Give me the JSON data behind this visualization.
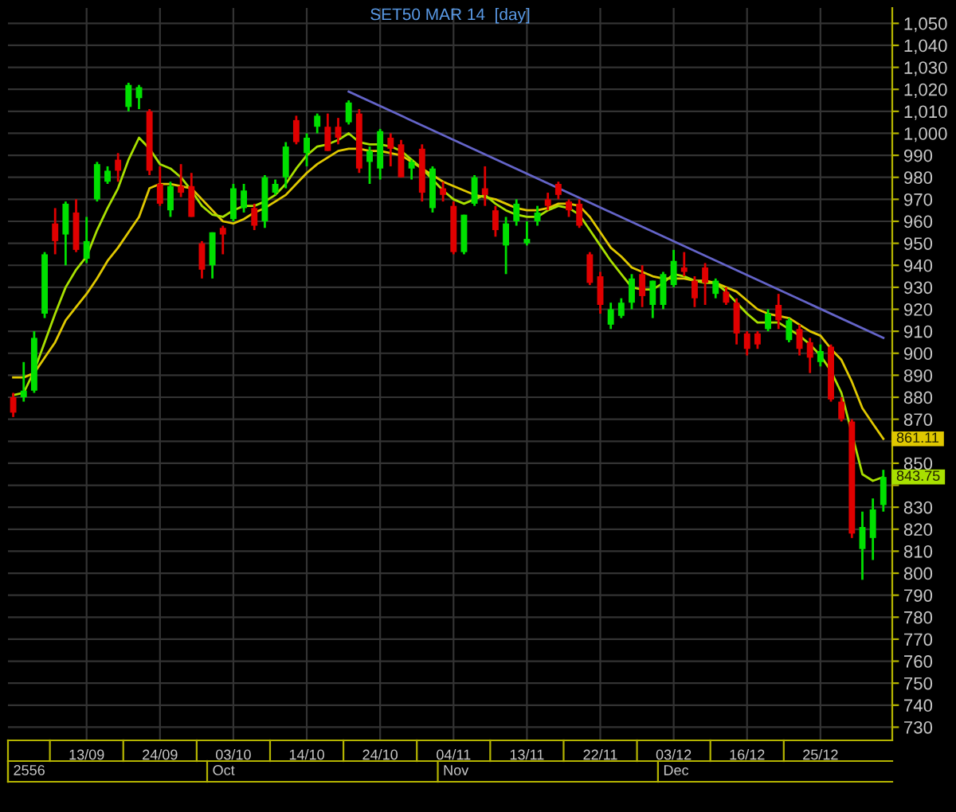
{
  "chart_data": {
    "type": "candlestick",
    "title": "SET50 MAR 14  [day]",
    "categories": [
      null,
      null,
      null,
      null,
      null,
      null,
      null,
      "13/09",
      null,
      null,
      null,
      null,
      null,
      null,
      "24/09",
      null,
      null,
      null,
      null,
      null,
      null,
      "03/10",
      null,
      null,
      null,
      null,
      null,
      null,
      "14/10",
      null,
      null,
      null,
      null,
      null,
      null,
      "24/10",
      null,
      null,
      null,
      null,
      null,
      null,
      "04/11",
      null,
      null,
      null,
      null,
      null,
      null,
      "13/11",
      null,
      null,
      null,
      null,
      null,
      null,
      "22/11",
      null,
      null,
      null,
      null,
      null,
      null,
      "03/12",
      null,
      null,
      null,
      null,
      null,
      null,
      "16/12",
      null,
      null,
      null,
      null,
      null,
      null,
      "25/12",
      null,
      null,
      null,
      null,
      null,
      null
    ],
    "ohlc": [
      [
        880,
        882,
        871,
        873
      ],
      [
        880,
        896,
        878,
        883
      ],
      [
        883,
        910,
        882,
        907
      ],
      [
        918,
        946,
        916,
        945
      ],
      [
        959,
        966,
        945,
        951
      ],
      [
        954,
        969,
        940,
        968
      ],
      [
        964,
        970,
        946,
        947
      ],
      [
        943,
        962,
        941,
        951
      ],
      [
        970,
        987,
        969,
        986
      ],
      [
        978,
        985,
        977,
        983
      ],
      [
        988,
        991,
        978,
        983
      ],
      [
        1012,
        1023,
        1010,
        1022
      ],
      [
        1016,
        1022,
        1011,
        1021
      ],
      [
        1010,
        1011,
        981,
        983
      ],
      [
        977,
        985,
        967,
        968
      ],
      [
        965,
        978,
        962,
        976
      ],
      [
        976,
        986,
        971,
        973
      ],
      [
        976,
        982,
        962,
        962
      ],
      [
        950,
        951,
        934,
        938
      ],
      [
        940,
        955,
        934,
        955
      ],
      [
        957,
        958,
        945,
        954
      ],
      [
        961,
        977,
        960,
        975
      ],
      [
        966,
        977,
        964,
        974
      ],
      [
        966,
        968,
        956,
        958
      ],
      [
        960,
        981,
        957,
        980
      ],
      [
        973,
        979,
        972,
        977
      ],
      [
        980,
        996,
        975,
        994
      ],
      [
        1006,
        1008,
        995,
        996
      ],
      [
        991,
        1000,
        985,
        998
      ],
      [
        1003,
        1009,
        1000,
        1008
      ],
      [
        1003,
        1009,
        992,
        992
      ],
      [
        1003,
        1007,
        995,
        998
      ],
      [
        1005,
        1015,
        1004,
        1014
      ],
      [
        1009,
        1011,
        982,
        984
      ],
      [
        987,
        994,
        977,
        992
      ],
      [
        984,
        1002,
        979,
        1001
      ],
      [
        998,
        1000,
        985,
        993
      ],
      [
        995,
        997,
        980,
        980
      ],
      [
        984,
        988,
        979,
        987
      ],
      [
        993,
        995,
        969,
        973
      ],
      [
        966,
        985,
        964,
        984
      ],
      [
        975,
        978,
        969,
        972
      ],
      [
        967,
        969,
        945,
        946
      ],
      [
        946,
        963,
        945,
        963
      ],
      [
        968,
        981,
        967,
        980
      ],
      [
        975,
        985,
        967,
        972
      ],
      [
        965,
        967,
        953,
        956
      ],
      [
        949,
        962,
        936,
        959
      ],
      [
        960,
        970,
        958,
        968
      ],
      [
        950,
        960,
        949,
        952
      ],
      [
        960,
        967,
        958,
        964
      ],
      [
        970,
        973,
        965,
        967
      ],
      [
        977,
        978,
        970,
        972
      ],
      [
        969,
        970,
        962,
        965
      ],
      [
        968,
        970,
        957,
        958
      ],
      [
        945,
        946,
        931,
        932
      ],
      [
        935,
        937,
        918,
        922
      ],
      [
        913,
        923,
        911,
        920
      ],
      [
        917,
        925,
        916,
        923
      ],
      [
        923,
        936,
        920,
        934
      ],
      [
        936,
        940,
        921,
        926
      ],
      [
        922,
        933,
        916,
        933
      ],
      [
        922,
        937,
        920,
        936
      ],
      [
        931,
        947,
        930,
        942
      ],
      [
        939,
        946,
        935,
        937
      ],
      [
        933,
        935,
        921,
        925
      ],
      [
        939,
        941,
        922,
        932
      ],
      [
        927,
        934,
        925,
        933
      ],
      [
        928,
        930,
        922,
        923
      ],
      [
        923,
        925,
        904,
        909
      ],
      [
        909,
        910,
        899,
        902
      ],
      [
        909,
        910,
        902,
        904
      ],
      [
        911,
        920,
        910,
        918
      ],
      [
        922,
        927,
        911,
        915
      ],
      [
        906,
        916,
        905,
        915
      ],
      [
        911,
        913,
        899,
        902
      ],
      [
        905,
        907,
        891,
        898
      ],
      [
        896,
        904,
        894,
        901
      ],
      [
        903,
        904,
        878,
        879
      ],
      [
        878,
        880,
        869,
        870
      ],
      [
        869,
        870,
        816,
        818
      ],
      [
        811,
        828,
        797,
        821
      ],
      [
        816,
        834,
        806,
        829
      ],
      [
        831,
        847,
        828,
        843.75
      ]
    ],
    "colors": [
      "#e00000",
      "#00e000",
      "#00e000",
      "#00e000",
      "#e00000",
      "#00e000",
      "#e00000",
      "#00e000",
      "#00e000",
      "#00e000",
      "#e00000",
      "#00e000",
      "#00e000",
      "#e00000",
      "#e00000",
      "#00e000",
      "#e00000",
      "#e00000",
      "#e00000",
      "#00e000",
      "#e00000",
      "#00e000",
      "#00e000",
      "#e00000",
      "#00e000",
      "#00e000",
      "#00e000",
      "#e00000",
      "#00e000",
      "#00e000",
      "#e00000",
      "#e00000",
      "#00e000",
      "#e00000",
      "#00e000",
      "#00e000",
      "#e00000",
      "#e00000",
      "#00e000",
      "#e00000",
      "#00e000",
      "#e00000",
      "#e00000",
      "#00e000",
      "#00e000",
      "#e00000",
      "#e00000",
      "#00e000",
      "#00e000",
      "#00e000",
      "#00e000",
      "#e00000",
      "#e00000",
      "#e00000",
      "#e00000",
      "#e00000",
      "#e00000",
      "#00e000",
      "#00e000",
      "#00e000",
      "#e00000",
      "#00e000",
      "#00e000",
      "#00e000",
      "#e00000",
      "#e00000",
      "#e00000",
      "#00e000",
      "#e00000",
      "#e00000",
      "#e00000",
      "#e00000",
      "#00e000",
      "#e00000",
      "#00e000",
      "#e00000",
      "#e00000",
      "#00e000",
      "#e00000",
      "#e00000",
      "#e00000",
      "#00e000",
      "#00e000",
      "#00e000"
    ],
    "series": [
      {
        "type": "line",
        "color": "#e0c800",
        "values": [
          889,
          889,
          891,
          898,
          905,
          915,
          921,
          927,
          934,
          942,
          948,
          955,
          962,
          975,
          977,
          977,
          976,
          975,
          970,
          965,
          960,
          959,
          961,
          964,
          966,
          969,
          972,
          977,
          982,
          986,
          989,
          992,
          993,
          993,
          992,
          992,
          991,
          990,
          987,
          984,
          981,
          978,
          976,
          974,
          972,
          971,
          970,
          968,
          966,
          965,
          965,
          966,
          968,
          968,
          967,
          962,
          955,
          948,
          944,
          939,
          937,
          935,
          934,
          934,
          934,
          933,
          933,
          932,
          930,
          928,
          924,
          920,
          918,
          917,
          916,
          913,
          910,
          908,
          902,
          897,
          887,
          875,
          868,
          861.11
        ]
      },
      {
        "type": "line",
        "color": "#a8e000",
        "values": [
          881,
          882,
          892,
          905,
          918,
          930,
          938,
          944,
          956,
          966,
          975,
          988,
          998,
          993,
          986,
          984,
          980,
          974,
          967,
          963,
          962,
          965,
          967,
          967,
          969,
          972,
          977,
          984,
          990,
          994,
          995,
          997,
          1000,
          996,
          995,
          995,
          994,
          992,
          988,
          984,
          979,
          974,
          970,
          968,
          970,
          972,
          968,
          965,
          963,
          962,
          962,
          965,
          967,
          966,
          963,
          956,
          949,
          942,
          936,
          930,
          929,
          929,
          932,
          936,
          935,
          933,
          932,
          932,
          928,
          923,
          918,
          914,
          914,
          914,
          911,
          908,
          904,
          899,
          892,
          882,
          null,
          845,
          842,
          843.75
        ]
      },
      {
        "type": "line",
        "color": "#6464c8",
        "values": [
          null,
          null,
          null,
          null,
          null,
          null,
          null,
          null,
          null,
          null,
          null,
          null,
          null,
          null,
          null,
          null,
          null,
          null,
          null,
          null,
          null,
          null,
          null,
          null,
          null,
          null,
          null,
          null,
          null,
          null,
          null,
          null,
          1019,
          null,
          null,
          null,
          null,
          null,
          null,
          null,
          null,
          null,
          null,
          null,
          null,
          null,
          null,
          null,
          null,
          null,
          null,
          null,
          null,
          null,
          null,
          null,
          null,
          null,
          null,
          null,
          null,
          null,
          null,
          null,
          null,
          null,
          null,
          null,
          null,
          null,
          null,
          null,
          null,
          null,
          null,
          null,
          null,
          null,
          null,
          null,
          null,
          null,
          null,
          907
        ]
      }
    ],
    "annotations": [
      "861.11",
      "843.75",
      "2556",
      "Oct",
      "Nov",
      "Dec"
    ],
    "ylim": [
      724,
      1057
    ],
    "yticks": [
      730,
      740,
      750,
      760,
      770,
      780,
      790,
      800,
      810,
      820,
      830,
      {
        "value": 840,
        "label": null
      },
      850,
      {
        "value": 860,
        "label": null
      },
      870,
      880,
      890,
      900,
      910,
      920,
      930,
      940,
      950,
      960,
      970,
      980,
      990,
      {
        "value": 1000,
        "label": "1,000"
      },
      {
        "value": 1010,
        "label": "1,010"
      },
      {
        "value": 1020,
        "label": "1,020"
      },
      {
        "value": 1030,
        "label": "1,030"
      },
      {
        "value": 1040,
        "label": "1,040"
      },
      {
        "value": 1050,
        "label": "1,050"
      }
    ],
    "grid": true
  }
}
